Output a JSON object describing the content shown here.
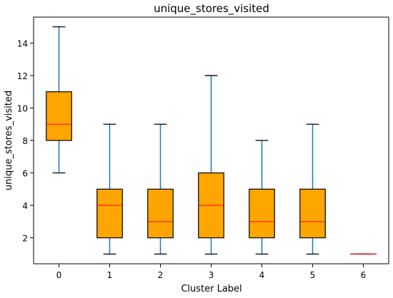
{
  "chart_data": {
    "type": "box",
    "title": "unique_stores_visited",
    "xlabel": "Cluster Label",
    "ylabel": "unique_stores_visited",
    "categories": [
      "0",
      "1",
      "2",
      "3",
      "4",
      "5",
      "6"
    ],
    "boxes": [
      {
        "category": "0",
        "whislo": 6,
        "q1": 8,
        "med": 9,
        "q3": 11,
        "whishi": 15
      },
      {
        "category": "1",
        "whislo": 1,
        "q1": 2,
        "med": 4,
        "q3": 5,
        "whishi": 9
      },
      {
        "category": "2",
        "whislo": 1,
        "q1": 2,
        "med": 3,
        "q3": 5,
        "whishi": 9
      },
      {
        "category": "3",
        "whislo": 1,
        "q1": 2,
        "med": 4,
        "q3": 6,
        "whishi": 12
      },
      {
        "category": "4",
        "whislo": 1,
        "q1": 2,
        "med": 3,
        "q3": 5,
        "whishi": 8
      },
      {
        "category": "5",
        "whislo": 1,
        "q1": 2,
        "med": 3,
        "q3": 5,
        "whishi": 9
      },
      {
        "category": "6",
        "whislo": 1,
        "q1": 1,
        "med": 1,
        "q3": 1,
        "whishi": 1
      }
    ],
    "yticks": [
      2,
      4,
      6,
      8,
      10,
      12,
      14
    ],
    "ylim": [
      0.4,
      15.6
    ],
    "grid": false,
    "colors": {
      "box_fill": "#FFA500",
      "box_edge": "#000000",
      "whisker": "#1f77b4",
      "median": "#ff0000"
    }
  }
}
